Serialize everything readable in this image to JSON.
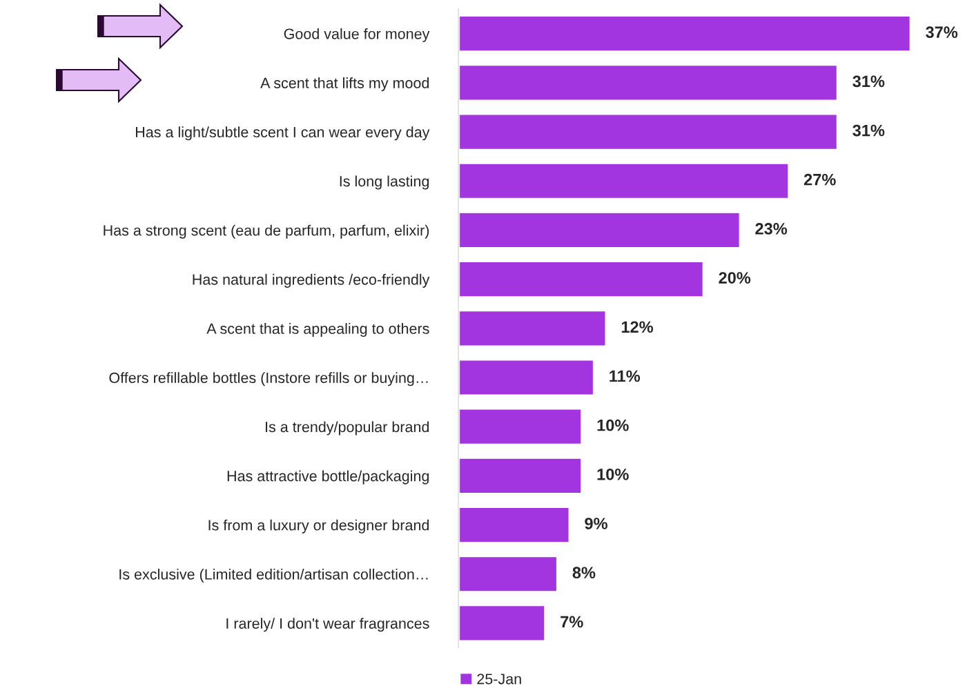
{
  "chart_data": {
    "type": "bar",
    "orientation": "horizontal",
    "categories": [
      "Good value for money",
      "A scent that lifts my mood",
      "Has a light/subtle scent I can wear every day",
      "Is long lasting",
      "Has a strong scent (eau de parfum, parfum, elixir)",
      "Has natural ingredients /eco-friendly",
      "A scent that is appealing to others",
      "Offers refillable bottles (Instore refills or buying…",
      "Is a trendy/popular brand",
      "Has attractive bottle/packaging",
      "Is from a luxury or designer brand",
      "Is exclusive (Limited edition/artisan collection…",
      "I rarely/ I don't wear fragrances"
    ],
    "series": [
      {
        "name": "25-Jan",
        "color": "#a335e0",
        "values": [
          37,
          31,
          31,
          27,
          23,
          20,
          12,
          11,
          10,
          10,
          9,
          8,
          7
        ],
        "value_labels": [
          "37%",
          "31%",
          "31%",
          "27%",
          "23%",
          "20%",
          "12%",
          "11%",
          "10%",
          "10%",
          "9%",
          "8%",
          "7%"
        ]
      }
    ],
    "legend": "bottom",
    "grid": false,
    "tick_labels": "y"
  }
}
